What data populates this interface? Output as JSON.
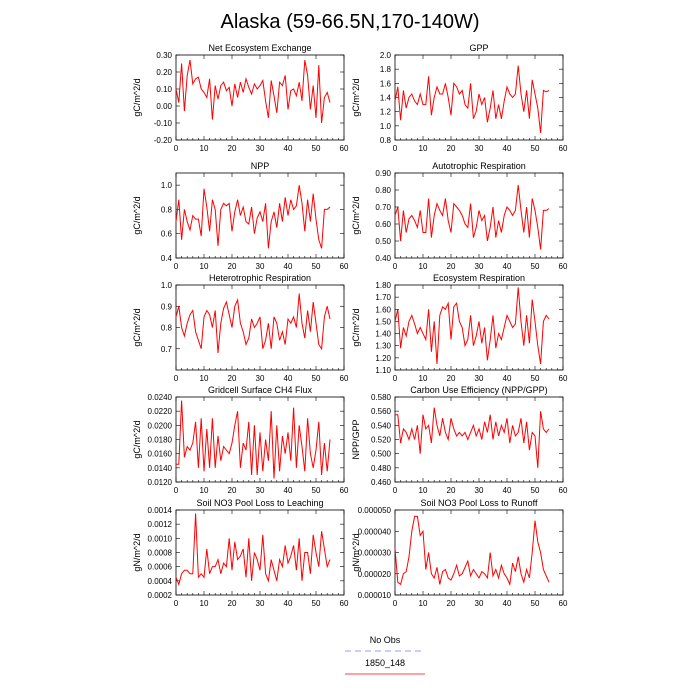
{
  "title": "Alaska (59-66.5N,170-140W)",
  "legend": [
    {
      "label": "No Obs",
      "color": "#9999ff",
      "dashed": true
    },
    {
      "label": "1850_148",
      "color": "#ff4444",
      "dashed": false
    }
  ],
  "chart_data": [
    {
      "type": "line",
      "title": "Net Ecosystem Exchange",
      "ylabel": "gC/m^2/d",
      "xlim": [
        0,
        60
      ],
      "ylim": [
        -0.2,
        0.3
      ],
      "xticks": [
        0,
        10,
        20,
        30,
        40,
        50,
        60
      ],
      "yticks": [
        -0.2,
        -0.1,
        0.0,
        0.1,
        0.2,
        0.3
      ],
      "ytick_labels": [
        "-0.20",
        "-0.10",
        "0.00",
        "0.10",
        "0.20",
        "0.30"
      ],
      "series": [
        {
          "values": [
            0.1,
            0.02,
            0.25,
            -0.03,
            0.18,
            0.27,
            0.13,
            0.16,
            0.17,
            0.1,
            0.08,
            0.05,
            0.16,
            -0.08,
            0.12,
            0.04,
            0.12,
            0.14,
            0.09,
            0.11,
            0.0,
            0.13,
            0.05,
            0.14,
            0.08,
            0.16,
            0.11,
            0.07,
            0.13,
            0.1,
            0.12,
            0.15,
            0.03,
            -0.07,
            0.15,
            0.06,
            -0.04,
            0.14,
            0.12,
            0.18,
            -0.02,
            0.09,
            0.1,
            0.06,
            0.14,
            0.03,
            0.27,
            0.18,
            -0.02,
            0.12,
            -0.07,
            0.24,
            -0.1,
            0.05,
            0.08,
            0.02
          ]
        }
      ]
    },
    {
      "type": "line",
      "title": "GPP",
      "ylabel": "gC/m^2/d",
      "xlim": [
        0,
        60
      ],
      "ylim": [
        0.8,
        2.0
      ],
      "xticks": [
        0,
        10,
        20,
        30,
        40,
        50,
        60
      ],
      "yticks": [
        0.8,
        1.0,
        1.2,
        1.4,
        1.6,
        1.8,
        2.0
      ],
      "ytick_labels": [
        "0.8",
        "1.0",
        "1.2",
        "1.4",
        "1.6",
        "1.8",
        "2.0"
      ],
      "series": [
        {
          "values": [
            1.35,
            1.55,
            1.08,
            1.5,
            1.25,
            1.4,
            1.45,
            1.35,
            1.3,
            1.45,
            1.3,
            1.3,
            1.7,
            1.15,
            1.4,
            1.55,
            1.45,
            1.45,
            1.6,
            1.4,
            1.15,
            1.6,
            1.55,
            1.45,
            1.5,
            1.3,
            1.25,
            1.6,
            1.1,
            1.2,
            1.45,
            1.3,
            1.4,
            1.05,
            1.25,
            1.5,
            1.1,
            1.3,
            1.1,
            1.35,
            1.55,
            1.45,
            1.4,
            1.45,
            1.85,
            1.45,
            1.2,
            1.5,
            1.1,
            1.65,
            1.45,
            1.25,
            0.9,
            1.5,
            1.48,
            1.5
          ]
        }
      ]
    },
    {
      "type": "line",
      "title": "NPP",
      "ylabel": "gC/m^2/d",
      "xlim": [
        0,
        60
      ],
      "ylim": [
        0.4,
        1.1
      ],
      "xticks": [
        0,
        10,
        20,
        30,
        40,
        50,
        60
      ],
      "yticks": [
        0.4,
        0.6,
        0.8,
        1.0
      ],
      "ytick_labels": [
        "0.4",
        "0.6",
        "0.8",
        "1.0"
      ],
      "series": [
        {
          "values": [
            0.7,
            0.88,
            0.55,
            0.8,
            0.7,
            0.63,
            0.75,
            0.72,
            0.72,
            0.58,
            0.97,
            0.82,
            0.62,
            0.88,
            0.8,
            0.5,
            0.8,
            0.85,
            0.83,
            0.85,
            0.62,
            0.78,
            0.88,
            0.75,
            0.82,
            0.7,
            0.68,
            0.82,
            0.6,
            0.73,
            0.78,
            0.7,
            0.85,
            0.48,
            0.7,
            0.78,
            0.65,
            0.85,
            0.7,
            0.9,
            0.75,
            0.88,
            0.8,
            0.83,
            1.0,
            0.85,
            0.62,
            0.88,
            0.7,
            0.93,
            0.72,
            0.55,
            0.48,
            0.8,
            0.8,
            0.82
          ]
        }
      ]
    },
    {
      "type": "line",
      "title": "Autotrophic Respiration",
      "ylabel": "gC/m^2/d",
      "xlim": [
        0,
        60
      ],
      "ylim": [
        0.4,
        0.9
      ],
      "xticks": [
        0,
        10,
        20,
        30,
        40,
        50,
        60
      ],
      "yticks": [
        0.4,
        0.5,
        0.6,
        0.7,
        0.8,
        0.9
      ],
      "ytick_labels": [
        "0.40",
        "0.50",
        "0.60",
        "0.70",
        "0.80",
        "0.90"
      ],
      "series": [
        {
          "values": [
            0.65,
            0.7,
            0.5,
            0.68,
            0.55,
            0.63,
            0.65,
            0.62,
            0.58,
            0.68,
            0.55,
            0.55,
            0.75,
            0.52,
            0.65,
            0.72,
            0.68,
            0.65,
            0.75,
            0.62,
            0.55,
            0.72,
            0.7,
            0.68,
            0.65,
            0.6,
            0.58,
            0.72,
            0.52,
            0.58,
            0.68,
            0.62,
            0.65,
            0.5,
            0.58,
            0.7,
            0.52,
            0.62,
            0.55,
            0.65,
            0.7,
            0.68,
            0.65,
            0.68,
            0.83,
            0.68,
            0.55,
            0.7,
            0.52,
            0.75,
            0.68,
            0.58,
            0.45,
            0.68,
            0.68,
            0.69
          ]
        }
      ]
    },
    {
      "type": "line",
      "title": "Heterotrophic Respiration",
      "ylabel": "gC/m^2/d",
      "xlim": [
        0,
        60
      ],
      "ylim": [
        0.6,
        1.0
      ],
      "xticks": [
        0,
        10,
        20,
        30,
        40,
        50,
        60
      ],
      "yticks": [
        0.7,
        0.8,
        0.9,
        1.0
      ],
      "ytick_labels": [
        "0.7",
        "0.8",
        "0.9",
        "1.0"
      ],
      "series": [
        {
          "values": [
            0.85,
            0.9,
            0.8,
            0.76,
            0.82,
            0.86,
            0.88,
            0.78,
            0.74,
            0.7,
            0.85,
            0.88,
            0.86,
            0.8,
            0.88,
            0.68,
            0.82,
            0.89,
            0.92,
            0.86,
            0.8,
            0.9,
            0.93,
            0.82,
            0.78,
            0.72,
            0.75,
            0.84,
            0.8,
            0.82,
            0.85,
            0.7,
            0.74,
            0.82,
            0.7,
            0.85,
            0.82,
            0.74,
            0.78,
            0.72,
            0.84,
            0.82,
            0.85,
            0.8,
            0.96,
            0.82,
            0.75,
            0.88,
            0.78,
            0.92,
            0.82,
            0.72,
            0.7,
            0.85,
            0.9,
            0.84
          ]
        }
      ]
    },
    {
      "type": "line",
      "title": "Ecosystem Respiration",
      "ylabel": "gC/m^2/d",
      "xlim": [
        0,
        60
      ],
      "ylim": [
        1.1,
        1.8
      ],
      "xticks": [
        0,
        10,
        20,
        30,
        40,
        50,
        60
      ],
      "yticks": [
        1.1,
        1.2,
        1.3,
        1.4,
        1.5,
        1.6,
        1.7,
        1.8
      ],
      "ytick_labels": [
        "1.10",
        "1.20",
        "1.30",
        "1.40",
        "1.50",
        "1.60",
        "1.70",
        "1.80"
      ],
      "series": [
        {
          "values": [
            1.5,
            1.6,
            1.28,
            1.45,
            1.38,
            1.5,
            1.55,
            1.48,
            1.4,
            1.45,
            1.4,
            1.35,
            1.6,
            1.25,
            1.5,
            1.15,
            1.55,
            1.62,
            1.6,
            1.65,
            1.35,
            1.62,
            1.65,
            1.5,
            1.45,
            1.3,
            1.35,
            1.55,
            1.3,
            1.38,
            1.5,
            1.32,
            1.45,
            1.18,
            1.35,
            1.55,
            1.28,
            1.4,
            1.35,
            1.45,
            1.55,
            1.5,
            1.45,
            1.48,
            1.78,
            1.5,
            1.3,
            1.55,
            1.32,
            1.68,
            1.5,
            1.3,
            1.15,
            1.5,
            1.55,
            1.52
          ]
        }
      ]
    },
    {
      "type": "line",
      "title": "Gridcell Surface CH4 Flux",
      "ylabel": "gC/m^2/d",
      "xlim": [
        0,
        60
      ],
      "ylim": [
        0.012,
        0.024
      ],
      "xticks": [
        0,
        10,
        20,
        30,
        40,
        50,
        60
      ],
      "yticks": [
        0.012,
        0.014,
        0.016,
        0.018,
        0.02,
        0.022,
        0.024
      ],
      "ytick_labels": [
        "0.0120",
        "0.0140",
        "0.0160",
        "0.0180",
        "0.0200",
        "0.0220",
        "0.0240"
      ],
      "series": [
        {
          "values": [
            0.0145,
            0.0145,
            0.0235,
            0.0155,
            0.017,
            0.0165,
            0.0175,
            0.0205,
            0.014,
            0.021,
            0.0135,
            0.0195,
            0.014,
            0.021,
            0.014,
            0.0185,
            0.015,
            0.017,
            0.0165,
            0.016,
            0.0175,
            0.02,
            0.022,
            0.014,
            0.0175,
            0.0165,
            0.0205,
            0.013,
            0.02,
            0.013,
            0.019,
            0.0135,
            0.018,
            0.015,
            0.022,
            0.0125,
            0.02,
            0.0135,
            0.0185,
            0.016,
            0.019,
            0.015,
            0.0225,
            0.014,
            0.02,
            0.017,
            0.0135,
            0.021,
            0.016,
            0.014,
            0.0165,
            0.0205,
            0.013,
            0.0175,
            0.0135,
            0.018
          ]
        }
      ]
    },
    {
      "type": "line",
      "title": "Carbon Use Efficiency (NPP/GPP)",
      "ylabel": "NPP/GPP",
      "xlim": [
        0,
        60
      ],
      "ylim": [
        0.46,
        0.58
      ],
      "xticks": [
        0,
        10,
        20,
        30,
        40,
        50,
        60
      ],
      "yticks": [
        0.46,
        0.48,
        0.5,
        0.52,
        0.54,
        0.56,
        0.58
      ],
      "ytick_labels": [
        "0.460",
        "0.480",
        "0.500",
        "0.520",
        "0.540",
        "0.560",
        "0.580"
      ],
      "series": [
        {
          "values": [
            0.555,
            0.555,
            0.515,
            0.535,
            0.53,
            0.52,
            0.535,
            0.52,
            0.54,
            0.5,
            0.555,
            0.535,
            0.54,
            0.515,
            0.565,
            0.54,
            0.525,
            0.55,
            0.53,
            0.52,
            0.55,
            0.535,
            0.525,
            0.53,
            0.525,
            0.53,
            0.52,
            0.53,
            0.54,
            0.525,
            0.535,
            0.52,
            0.545,
            0.53,
            0.555,
            0.52,
            0.545,
            0.525,
            0.54,
            0.53,
            0.55,
            0.515,
            0.54,
            0.525,
            0.53,
            0.55,
            0.515,
            0.545,
            0.505,
            0.53,
            0.525,
            0.48,
            0.56,
            0.535,
            0.53,
            0.535
          ]
        }
      ]
    },
    {
      "type": "line",
      "title": "Soil NO3 Pool Loss to Leaching",
      "ylabel": "gN/m^2/d",
      "xlim": [
        0,
        60
      ],
      "ylim": [
        0.0002,
        0.0014
      ],
      "xticks": [
        0,
        10,
        20,
        30,
        40,
        50,
        60
      ],
      "yticks": [
        0.0002,
        0.0004,
        0.0006,
        0.0008,
        0.001,
        0.0012,
        0.0014
      ],
      "ytick_labels": [
        "0.0002",
        "0.0004",
        "0.0006",
        "0.0008",
        "0.0010",
        "0.0012",
        "0.0014"
      ],
      "series": [
        {
          "values": [
            0.00045,
            0.00035,
            0.0005,
            0.00055,
            0.00055,
            0.0005,
            0.0005,
            0.00135,
            0.00045,
            0.0005,
            0.00045,
            0.00085,
            0.0005,
            0.0006,
            0.0006,
            0.0007,
            0.0005,
            0.00065,
            0.0006,
            0.001,
            0.00055,
            0.00095,
            0.0007,
            0.00075,
            0.00085,
            0.00045,
            0.001,
            0.0004,
            0.0008,
            0.0007,
            0.00055,
            0.00105,
            0.0005,
            0.0004,
            0.0007,
            0.00055,
            0.0004,
            0.0007,
            0.0006,
            0.0009,
            0.00065,
            0.00075,
            0.0009,
            0.00055,
            0.001,
            0.0004,
            0.0008,
            0.0008,
            0.0005,
            0.00105,
            0.0008,
            0.0006,
            0.0011,
            0.00085,
            0.0006,
            0.0007
          ]
        }
      ]
    },
    {
      "type": "line",
      "title": "Soil NO3 Pool Loss to Runoff",
      "ylabel": "gN/m^2/d",
      "xlim": [
        0,
        60
      ],
      "ylim": [
        1e-05,
        5e-05
      ],
      "xticks": [
        0,
        10,
        20,
        30,
        40,
        50,
        60
      ],
      "yticks": [
        1e-05,
        2e-05,
        3e-05,
        4e-05,
        5e-05
      ],
      "ytick_labels": [
        "0.000010",
        "0.000020",
        "0.000030",
        "0.000040",
        "0.000050"
      ],
      "series": [
        {
          "values": [
            3.2e-05,
            1.6e-05,
            1.5e-05,
            2e-05,
            2.1e-05,
            2.8e-05,
            4e-05,
            4.7e-05,
            4.7e-05,
            3.8e-05,
            4e-05,
            2.2e-05,
            3e-05,
            2e-05,
            1.8e-05,
            2.3e-05,
            1.5e-05,
            2.1e-05,
            2.2e-05,
            1.8e-05,
            1.7e-05,
            2e-05,
            2.4e-05,
            1.9e-05,
            2e-05,
            2.3e-05,
            2.6e-05,
            1.9e-05,
            2.2e-05,
            2e-05,
            1.8e-05,
            2.1e-05,
            2e-05,
            1.8e-05,
            3e-05,
            1.9e-05,
            2.2e-05,
            1.8e-05,
            2.4e-05,
            2e-05,
            1.8e-05,
            1.5e-05,
            2.5e-05,
            2.1e-05,
            2.8e-05,
            2e-05,
            1.6e-05,
            2.2e-05,
            1.8e-05,
            3e-05,
            4.5e-05,
            3.5e-05,
            3e-05,
            2.2e-05,
            1.9e-05,
            1.6e-05
          ]
        }
      ]
    }
  ]
}
